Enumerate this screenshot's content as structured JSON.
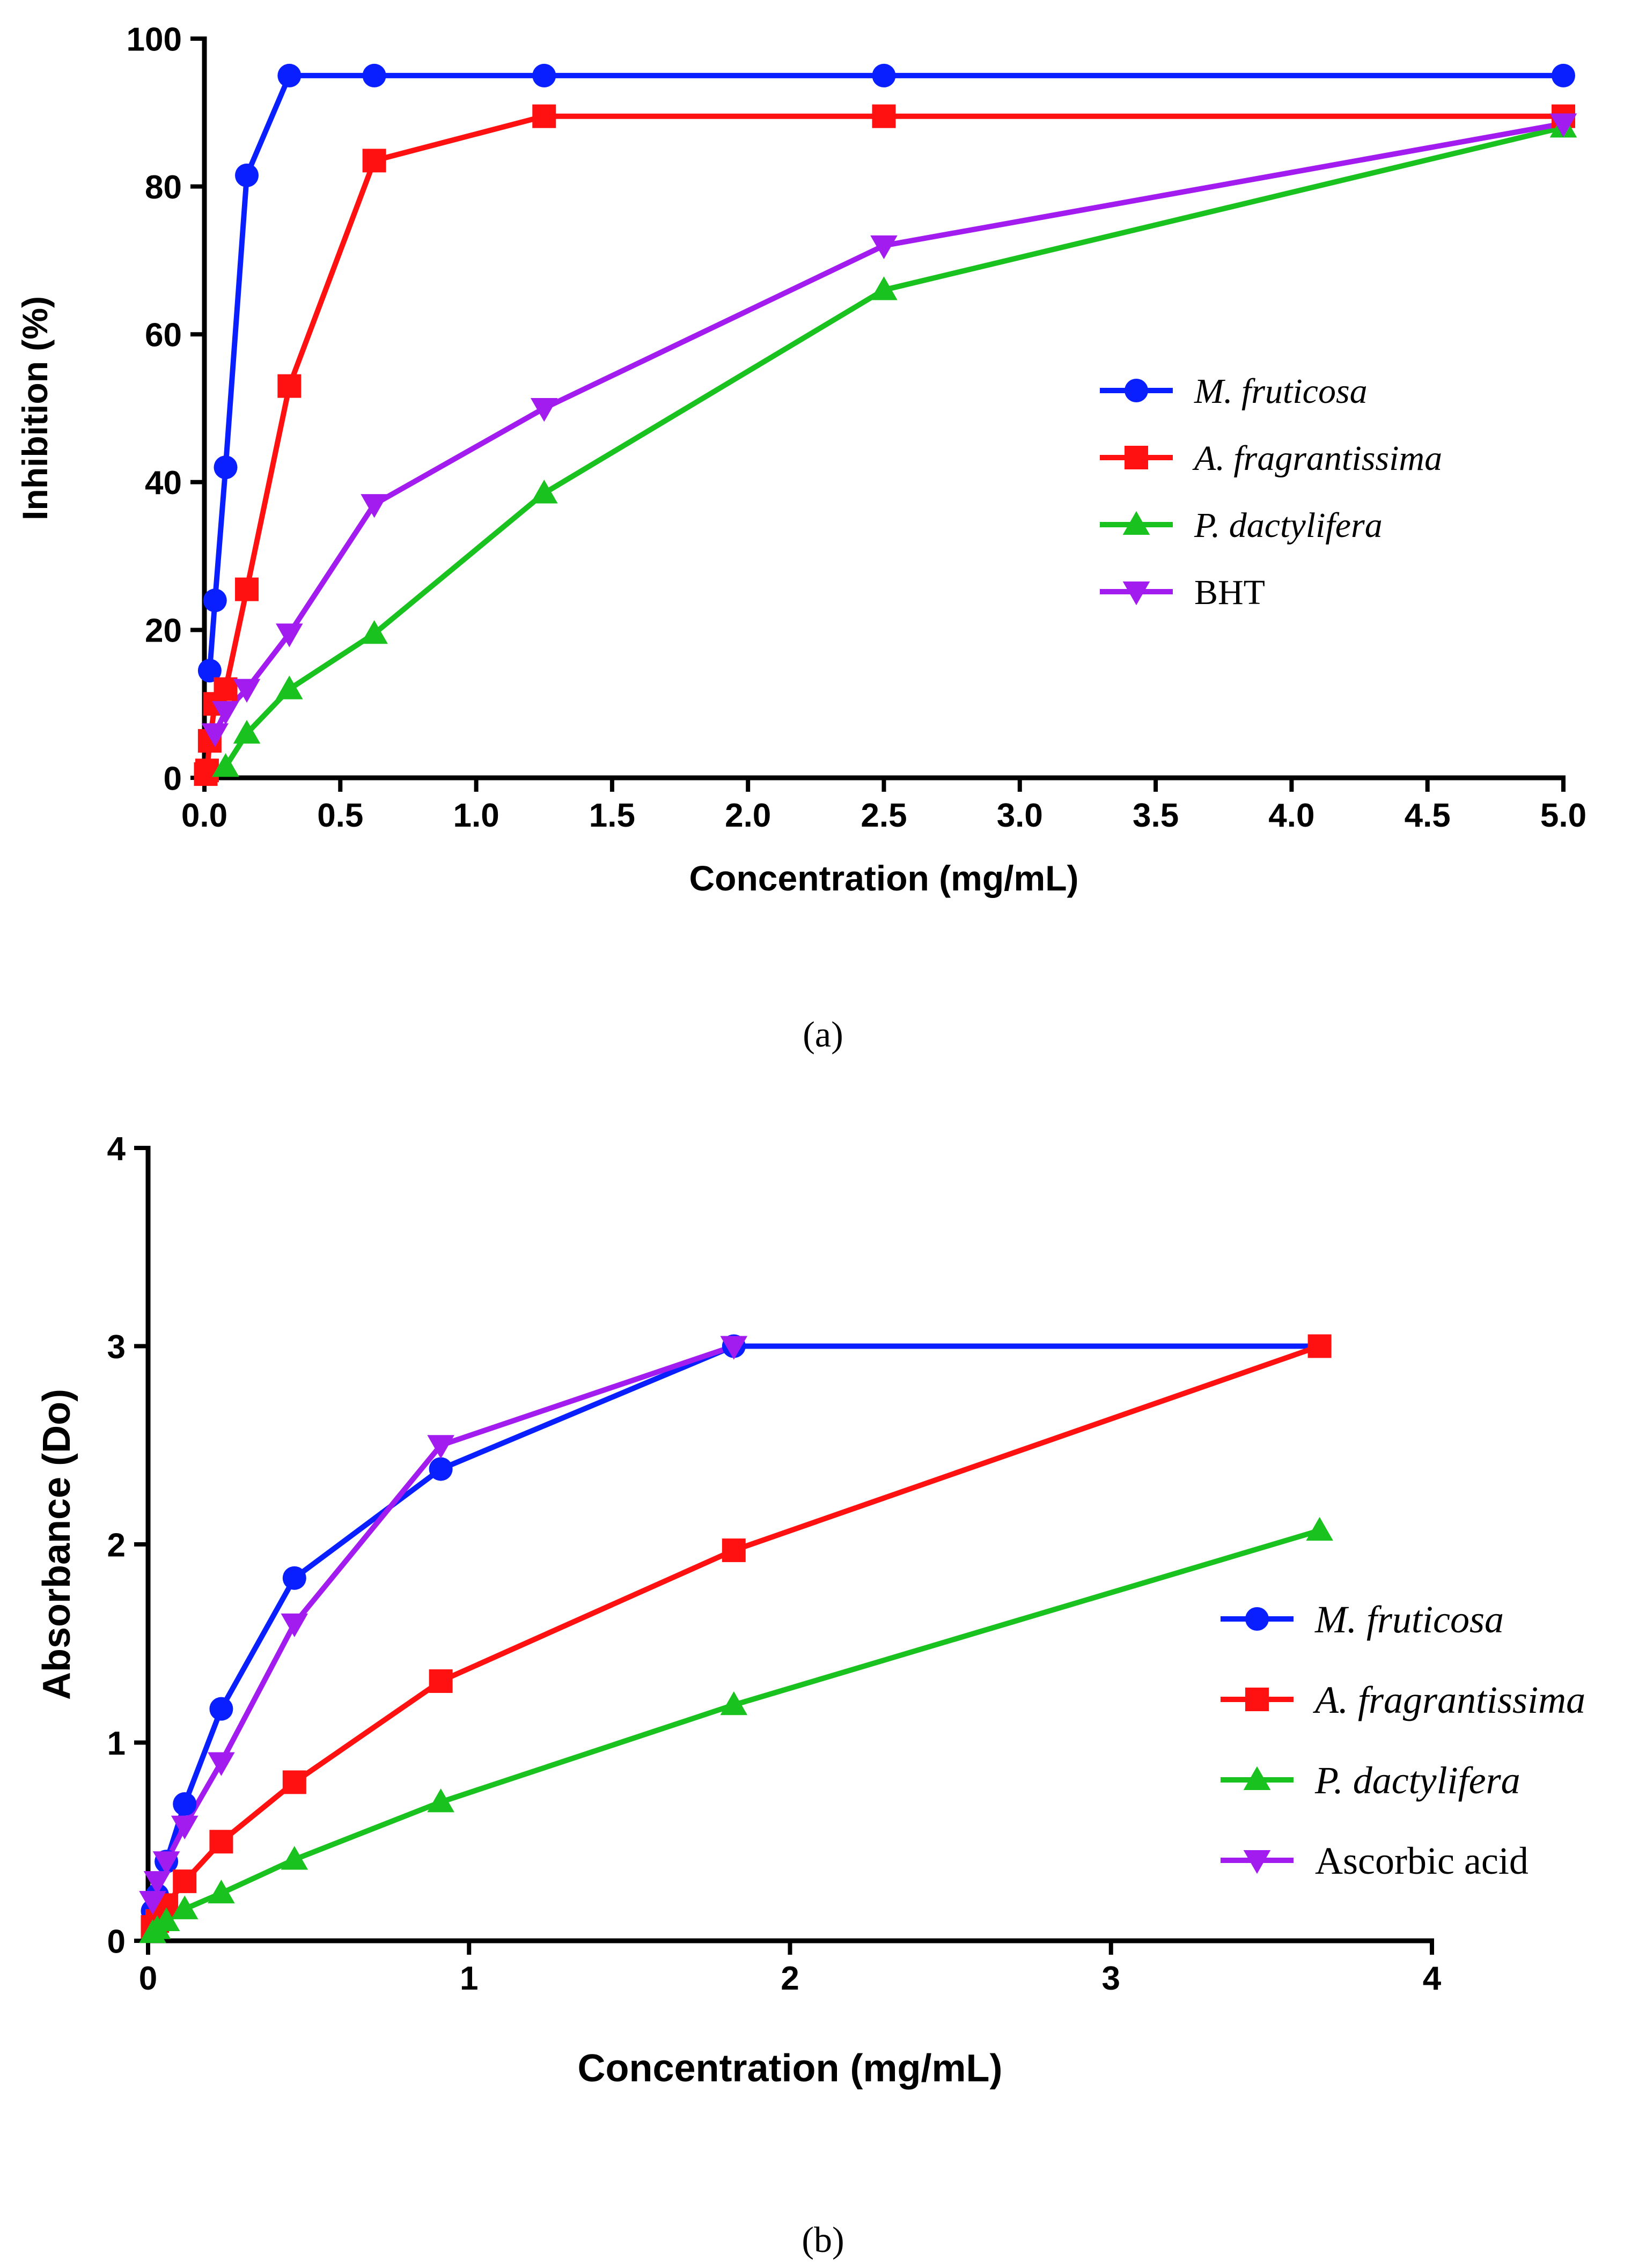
{
  "colors": {
    "blue": "#0a1fff",
    "red": "#ff1111",
    "green": "#19c21e",
    "purple": "#a21cf0",
    "axis": "#000000"
  },
  "chart_data": [
    {
      "type": "line",
      "panel_label": "(a)",
      "xlabel": "Concentration (mg/mL)",
      "ylabel": "Inhibition (%)",
      "xlim": [
        0,
        5
      ],
      "ylim": [
        0,
        100
      ],
      "xticks": [
        "0.0",
        "0.5",
        "1.0",
        "1.5",
        "2.0",
        "2.5",
        "3.0",
        "3.5",
        "4.0",
        "4.5",
        "5.0"
      ],
      "xtick_values": [
        0,
        0.5,
        1,
        1.5,
        2,
        2.5,
        3,
        3.5,
        4,
        4.5,
        5
      ],
      "yticks": [
        "0",
        "20",
        "40",
        "60",
        "80",
        "100"
      ],
      "ytick_values": [
        0,
        20,
        40,
        60,
        80,
        100
      ],
      "legend_position": "right",
      "series": [
        {
          "name": "M. fruticosa",
          "italic": true,
          "color": "blue",
          "marker": "circle",
          "x": [
            0.0195,
            0.039,
            0.078,
            0.156,
            0.3125,
            0.625,
            1.25,
            2.5,
            5.0
          ],
          "y": [
            14.5,
            24,
            42,
            81.5,
            95,
            95,
            95,
            95,
            95
          ]
        },
        {
          "name": "A. fragrantissima",
          "italic": true,
          "color": "red",
          "marker": "square",
          "x": [
            0.0049,
            0.0098,
            0.0195,
            0.039,
            0.078,
            0.156,
            0.3125,
            0.625,
            1.25,
            2.5,
            5.0
          ],
          "y": [
            0.5,
            1,
            5,
            10,
            12,
            25.5,
            53,
            83.5,
            89.5,
            89.5,
            89.5
          ]
        },
        {
          "name": "P. dactylifera",
          "italic": true,
          "color": "green",
          "marker": "triangle-up",
          "x": [
            0.078,
            0.156,
            0.3125,
            0.625,
            1.25,
            2.5,
            5.0
          ],
          "y": [
            1.5,
            6,
            12,
            19.5,
            38.5,
            66,
            88
          ]
        },
        {
          "name": "BHT",
          "italic": false,
          "color": "purple",
          "marker": "triangle-down",
          "x": [
            0.039,
            0.078,
            0.156,
            0.3125,
            0.625,
            1.25,
            2.5,
            5.0
          ],
          "y": [
            6,
            9,
            12,
            19.5,
            37,
            50,
            72,
            88.5
          ]
        }
      ]
    },
    {
      "type": "line",
      "panel_label": "(b)",
      "xlabel": "Concentration (mg/mL)",
      "ylabel": "Absorbance (Do)",
      "xlim": [
        0,
        4
      ],
      "ylim": [
        0,
        4
      ],
      "xticks": [
        "0",
        "1",
        "2",
        "3",
        "4"
      ],
      "xtick_values": [
        0,
        1,
        2,
        3,
        4
      ],
      "yticks": [
        "0",
        "1",
        "2",
        "3",
        "4"
      ],
      "ytick_values": [
        0,
        1,
        2,
        3,
        4
      ],
      "legend_position": "right",
      "series": [
        {
          "name": "M. fruticosa",
          "italic": true,
          "color": "blue",
          "marker": "circle",
          "x": [
            0.0142,
            0.0285,
            0.057,
            0.114,
            0.228,
            0.456,
            0.912,
            1.825,
            3.65
          ],
          "y": [
            0.15,
            0.23,
            0.4,
            0.69,
            1.17,
            1.83,
            2.38,
            3.0,
            3.0
          ]
        },
        {
          "name": "A. fragrantissima",
          "italic": true,
          "color": "red",
          "marker": "square",
          "x": [
            0.0142,
            0.0285,
            0.057,
            0.114,
            0.228,
            0.456,
            0.912,
            1.825,
            3.65
          ],
          "y": [
            0.07,
            0.1,
            0.18,
            0.3,
            0.5,
            0.8,
            1.31,
            1.97,
            3.0
          ]
        },
        {
          "name": "P. dactylifera",
          "italic": true,
          "color": "green",
          "marker": "triangle-up",
          "x": [
            0.0142,
            0.0285,
            0.057,
            0.114,
            0.228,
            0.456,
            0.912,
            1.825,
            3.65
          ],
          "y": [
            0.04,
            0.06,
            0.1,
            0.16,
            0.24,
            0.41,
            0.7,
            1.19,
            2.07
          ]
        },
        {
          "name": "Ascorbic acid",
          "italic": false,
          "color": "purple",
          "marker": "triangle-down",
          "x": [
            0.0142,
            0.0285,
            0.057,
            0.114,
            0.228,
            0.456,
            0.912,
            1.825
          ],
          "y": [
            0.2,
            0.3,
            0.4,
            0.58,
            0.9,
            1.6,
            2.5,
            3.0
          ]
        }
      ]
    }
  ]
}
